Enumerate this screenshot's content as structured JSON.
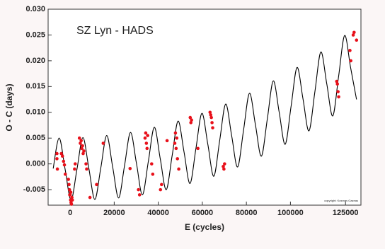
{
  "chart_data": {
    "type": "scatter",
    "title": "SZ Lyn - HADS",
    "x_label": "E (cycles)",
    "y_label": "O - C (days)",
    "annotation": "copyright: Kosmas Gazeas",
    "xlim": [
      -10000,
      132000
    ],
    "ylim": [
      -0.008,
      0.03
    ],
    "xticks": [
      0,
      20000,
      40000,
      60000,
      80000,
      100000,
      125000
    ],
    "yticks": [
      {
        "value": -0.005,
        "label": "-0.005"
      },
      {
        "value": 0,
        "label": "0.000"
      },
      {
        "value": 0.005,
        "label": "0.005"
      },
      {
        "value": 0.01,
        "label": "0.010"
      },
      {
        "value": 0.015,
        "label": "0.015"
      },
      {
        "value": 0.02,
        "label": "0.020"
      },
      {
        "value": 0.025,
        "label": "0.025"
      },
      {
        "value": 0.03,
        "label": "0.030"
      }
    ],
    "series": [
      {
        "type": "line",
        "color": "#000000",
        "x": [
          -7700,
          -5000,
          -2300,
          400,
          3100,
          5800,
          8500,
          11200,
          13900,
          16600,
          19300,
          22000,
          24700,
          27400,
          30100,
          32800,
          35500,
          38200,
          40900,
          43600,
          46300,
          49000,
          51700,
          54400,
          57100,
          59800,
          62500,
          65200,
          67900,
          70600,
          73300,
          76000,
          78700,
          81400,
          84100,
          86800,
          89500,
          92200,
          94900,
          97600,
          100300,
          103000,
          105700,
          108400,
          111100,
          113800,
          116500,
          119200,
          121900,
          124600,
          127300,
          130000
        ],
        "values": [
          -0.0009,
          0.005,
          -0.001,
          -0.007,
          -0.001,
          0.0051,
          -0.0009,
          -0.0069,
          -0.0008,
          0.0055,
          -0.0006,
          -0.0066,
          -0.0003,
          0.0061,
          0.0001,
          -0.006,
          0.0005,
          0.0071,
          0.001,
          -0.005,
          0.0016,
          0.0083,
          0.0023,
          -0.0038,
          0.003,
          0.0098,
          0.0038,
          -0.0024,
          0.0046,
          0.0116,
          0.0055,
          -0.0006,
          0.0065,
          0.0137,
          0.0076,
          0.0015,
          0.0087,
          0.0161,
          0.01,
          0.0038,
          0.0112,
          0.0187,
          0.0126,
          0.0064,
          0.014,
          0.0217,
          0.0155,
          0.0093,
          0.0171,
          0.0249,
          0.0187,
          0.0125
        ]
      },
      {
        "type": "scatter",
        "color": "#e8101a",
        "x": [
          -6000,
          -6000,
          -5800,
          -4000,
          -3500,
          -3000,
          -2600,
          -2200,
          -500,
          -300,
          0,
          200,
          400,
          600,
          800,
          -200,
          300,
          1000,
          -800,
          2000,
          2300,
          4200,
          4600,
          5000,
          5300,
          5600,
          5900,
          6200,
          7200,
          7500,
          9000,
          12000,
          15000,
          27200,
          31000,
          31500,
          34000,
          34300,
          34600,
          34900,
          35200,
          37000,
          37500,
          41000,
          41500,
          44000,
          47500,
          47800,
          48100,
          48400,
          48700,
          49300,
          54500,
          54800,
          55100,
          58000,
          63500,
          63800,
          64100,
          64400,
          64700,
          69500,
          69800,
          70100,
          121000,
          121300,
          121600,
          121900,
          127000,
          127400,
          128500,
          128900,
          130000
        ],
        "values": [
          0.002,
          0.001,
          -0.001,
          0.002,
          0.0015,
          0.0005,
          -0.0002,
          -0.002,
          -0.004,
          -0.005,
          -0.006,
          -0.007,
          -0.0075,
          -0.0078,
          -0.0065,
          -0.006,
          -0.0055,
          -0.007,
          -0.003,
          -0.001,
          0.0,
          0.005,
          0.004,
          0.0045,
          0.003,
          0.0035,
          0.002,
          0.0025,
          0.0,
          -0.001,
          -0.0065,
          -0.004,
          0.004,
          -0.0009,
          -0.005,
          -0.006,
          0.005,
          0.006,
          0.004,
          0.003,
          0.0055,
          0.0,
          -0.002,
          -0.005,
          -0.004,
          0.0045,
          0.004,
          0.006,
          0.003,
          0.005,
          0.001,
          -0.001,
          0.009,
          0.008,
          0.0085,
          0.003,
          0.01,
          0.0095,
          0.009,
          0.008,
          0.007,
          -0.0005,
          -0.001,
          0.0,
          0.016,
          0.0155,
          0.014,
          0.013,
          0.022,
          0.02,
          0.025,
          0.0255,
          0.024
        ]
      }
    ]
  }
}
